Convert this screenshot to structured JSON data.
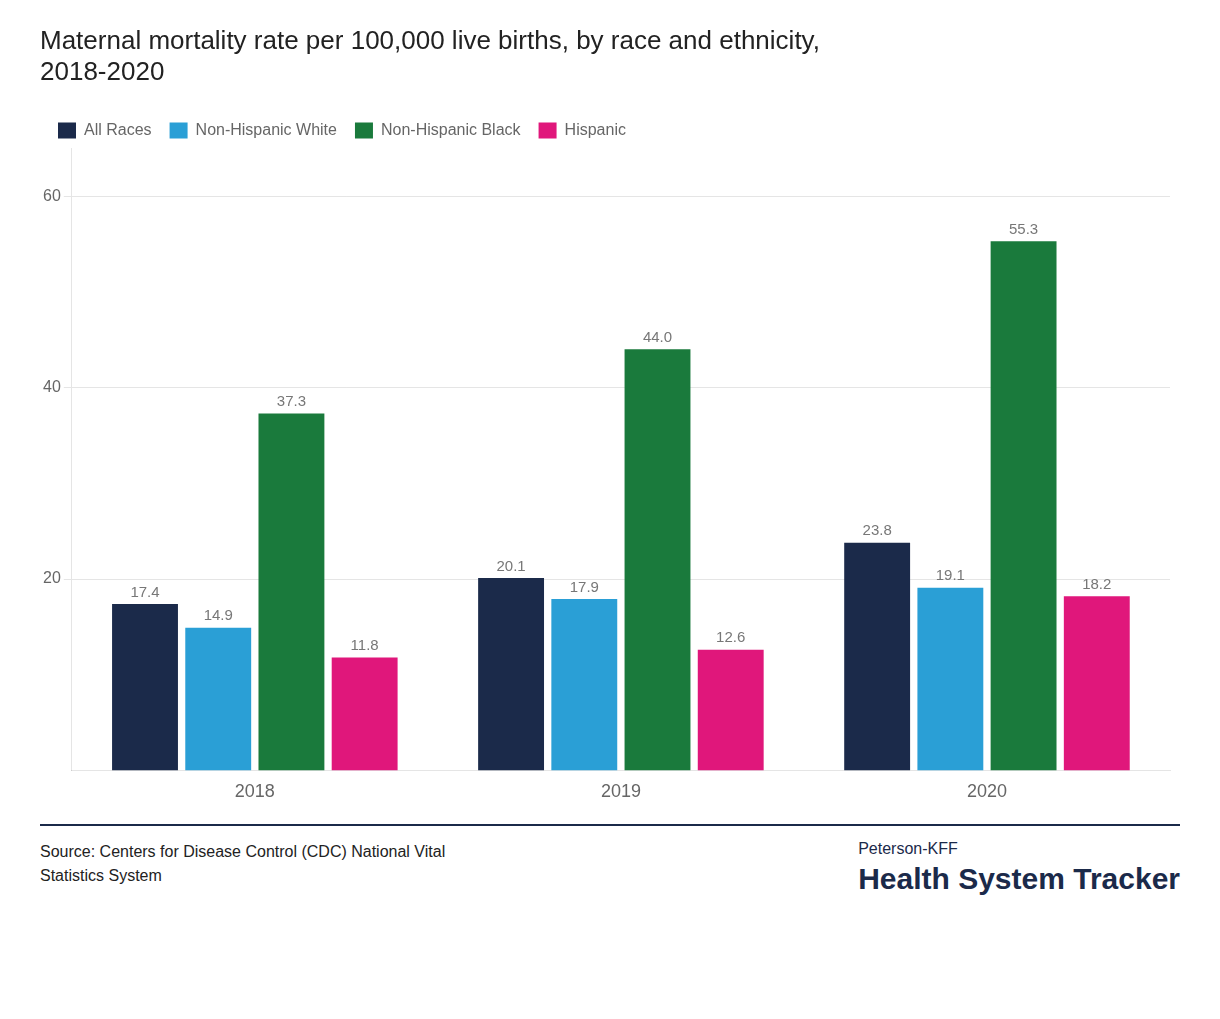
{
  "chart_data": {
    "type": "bar",
    "title": [
      "Maternal mortality rate per 100,000 live births, by race and ethnicity,",
      "2018-2020"
    ],
    "categories": [
      "2018",
      "2019",
      "2020"
    ],
    "series": [
      {
        "name": "All Races",
        "color": "#1b2a4a",
        "values": [
          17.4,
          20.1,
          23.8
        ],
        "value_labels": [
          "17.4",
          "20.1",
          "23.8"
        ]
      },
      {
        "name": "Non-Hispanic White",
        "color": "#2a9fd6",
        "values": [
          14.9,
          17.9,
          19.1
        ],
        "value_labels": [
          "14.9",
          "17.9",
          "19.1"
        ]
      },
      {
        "name": "Non-Hispanic Black",
        "color": "#1a7a3c",
        "values": [
          37.3,
          44.0,
          55.3
        ],
        "value_labels": [
          "37.3",
          "44.0",
          "55.3"
        ]
      },
      {
        "name": "Hispanic",
        "color": "#e0177b",
        "values": [
          11.8,
          12.6,
          18.2
        ],
        "value_labels": [
          "11.8",
          "12.6",
          "18.2"
        ]
      }
    ],
    "ylim": [
      0,
      65
    ],
    "yticks": [
      20,
      40,
      60
    ],
    "grid": true,
    "legend": "upper left",
    "data_labels": true,
    "annotations": [
      "Source: Centers for Disease Control (CDC) National Vital",
      "Statistics System",
      "Peterson-KFF",
      "Health System Tracker"
    ]
  }
}
